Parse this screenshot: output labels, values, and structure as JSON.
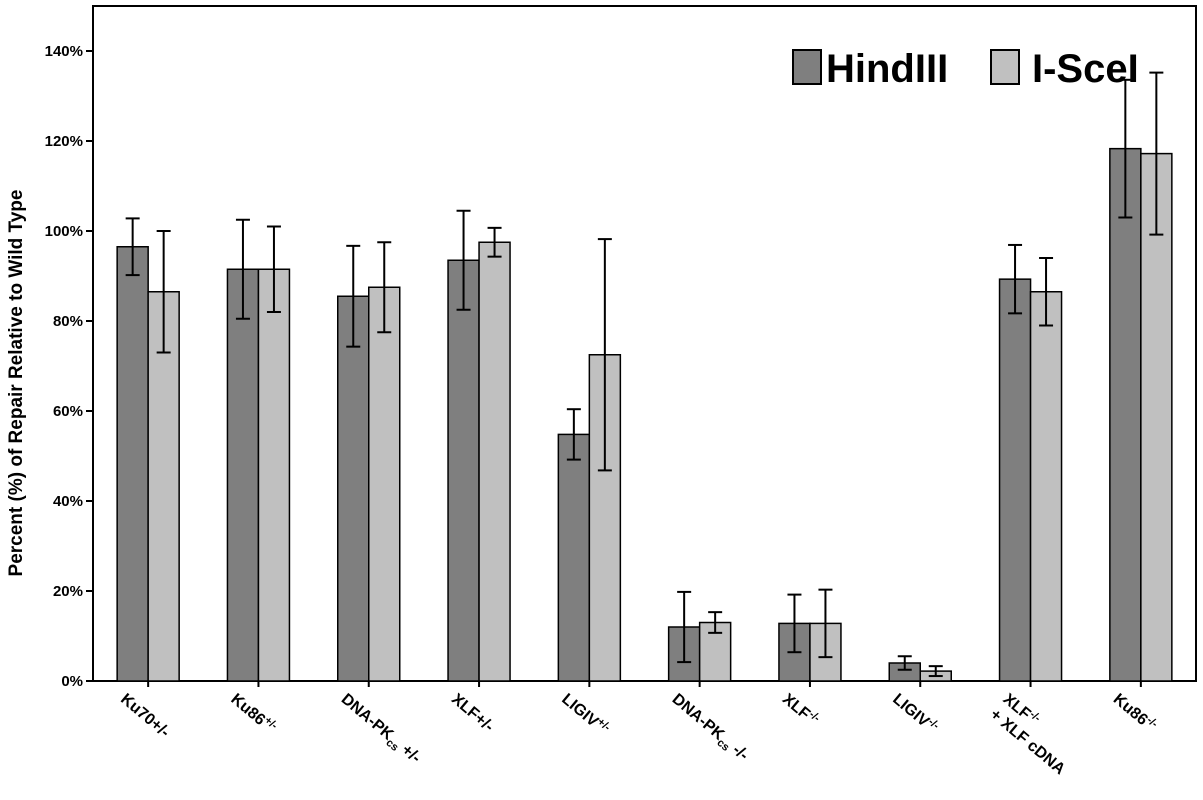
{
  "chart_data": {
    "type": "bar",
    "ylabel": "Percent (%) of Repair Relative to Wild Type",
    "ylim": [
      0,
      1.5
    ],
    "yticks": [
      {
        "value": 0.0,
        "label": "0%"
      },
      {
        "value": 0.2,
        "label": "20%"
      },
      {
        "value": 0.4,
        "label": "40%"
      },
      {
        "value": 0.6,
        "label": "60%"
      },
      {
        "value": 0.8,
        "label": "80%"
      },
      {
        "value": 1.0,
        "label": "100%"
      },
      {
        "value": 1.2,
        "label": "120%"
      },
      {
        "value": 1.4,
        "label": "140%"
      }
    ],
    "categories": [
      {
        "parts": [
          {
            "t": "Ku70"
          },
          {
            "t": "+/-"
          }
        ]
      },
      {
        "parts": [
          {
            "t": "Ku86"
          },
          {
            "t": "+/-",
            "sup": true
          }
        ]
      },
      {
        "parts": [
          {
            "t": "DNA-PK"
          },
          {
            "t": "cs",
            "sub": true
          },
          {
            "t": " +/-"
          }
        ]
      },
      {
        "parts": [
          {
            "t": "XLF"
          },
          {
            "t": "+/-"
          }
        ]
      },
      {
        "parts": [
          {
            "t": "LIGIV"
          },
          {
            "t": "+/-",
            "sup": true
          }
        ]
      },
      {
        "parts": [
          {
            "t": "DNA-PK"
          },
          {
            "t": "cs",
            "sub": true
          },
          {
            "t": " -/-"
          }
        ]
      },
      {
        "parts": [
          {
            "t": "XLF"
          },
          {
            "t": "-/-",
            "sup": true
          }
        ]
      },
      {
        "parts": [
          {
            "t": "LIGIV"
          },
          {
            "t": "-/-",
            "sup": true
          }
        ]
      },
      {
        "parts": [
          {
            "t": "XLF"
          },
          {
            "t": "-/-",
            "sup": true
          }
        ],
        "line2": "+ XLF cDNA"
      },
      {
        "parts": [
          {
            "t": "Ku86"
          },
          {
            "t": "-/-",
            "sup": true
          }
        ]
      }
    ],
    "series": [
      {
        "name": "HindIII",
        "color": "#7f7f7f",
        "values": [
          0.965,
          0.915,
          0.855,
          0.935,
          0.548,
          0.12,
          0.128,
          0.04,
          0.893,
          1.183
        ],
        "errors": [
          0.063,
          0.11,
          0.112,
          0.11,
          0.056,
          0.078,
          0.064,
          0.015,
          0.076,
          0.153
        ]
      },
      {
        "name": "I-SceI",
        "color": "#c0c0c0",
        "values": [
          0.865,
          0.915,
          0.875,
          0.975,
          0.725,
          0.13,
          0.128,
          0.022,
          0.865,
          1.172
        ],
        "errors": [
          0.135,
          0.095,
          0.1,
          0.032,
          0.257,
          0.023,
          0.075,
          0.011,
          0.075,
          0.18
        ]
      }
    ],
    "legend": "top-right",
    "grid": false
  }
}
